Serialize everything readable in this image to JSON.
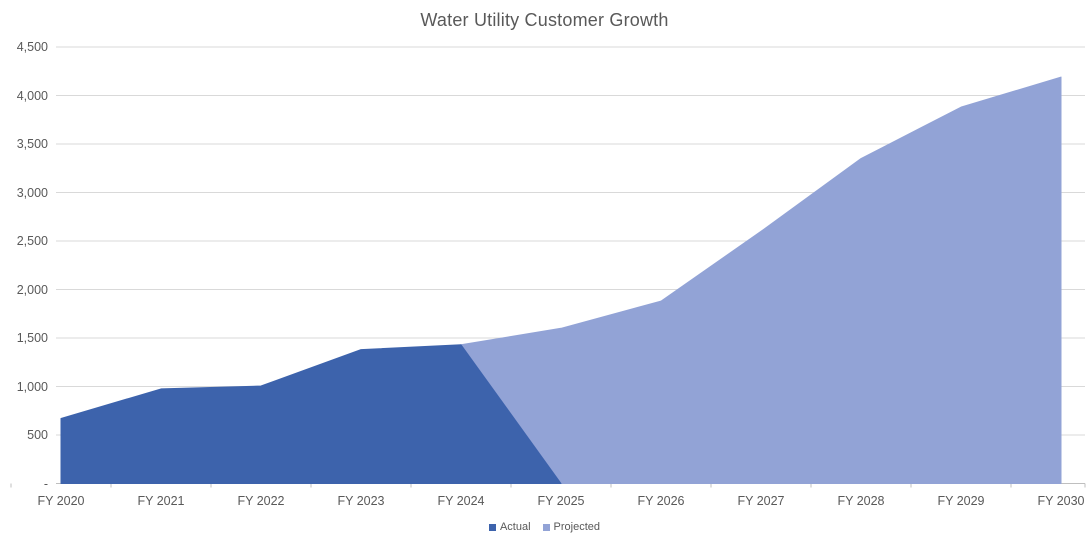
{
  "title": "Water Utility Customer Growth",
  "colors": {
    "background": "#FFFFFF",
    "title_text": "#595959",
    "axis_text": "#595959",
    "gridline": "#D9D9D9",
    "axis_line": "#BFBFBF",
    "actual_fill": "#3D63AC",
    "projected_fill": "#92A3D6"
  },
  "chart_data": {
    "type": "area",
    "title": "Water Utility Customer Growth",
    "categories": [
      "FY 2020",
      "FY 2021",
      "FY 2022",
      "FY 2023",
      "FY 2024",
      "FY 2025",
      "FY 2026",
      "FY 2027",
      "FY 2028",
      "FY 2029",
      "FY 2030"
    ],
    "series": [
      {
        "name": "Actual",
        "color": "#3D63AC",
        "values": [
          670,
          975,
          1005,
          1380,
          1430,
          0,
          null,
          null,
          null,
          null,
          null
        ]
      },
      {
        "name": "Projected",
        "color": "#92A3D6",
        "values": [
          null,
          null,
          null,
          null,
          1430,
          1600,
          1880,
          2600,
          3350,
          3880,
          4190
        ]
      }
    ],
    "xlabel": "",
    "ylabel": "",
    "ylim": [
      0,
      4500
    ],
    "y_ticks": [
      "-",
      "500",
      "1,000",
      "1,500",
      "2,000",
      "2,500",
      "3,000",
      "3,500",
      "4,000",
      "4,500"
    ],
    "grid": true,
    "legend_position": "bottom"
  }
}
